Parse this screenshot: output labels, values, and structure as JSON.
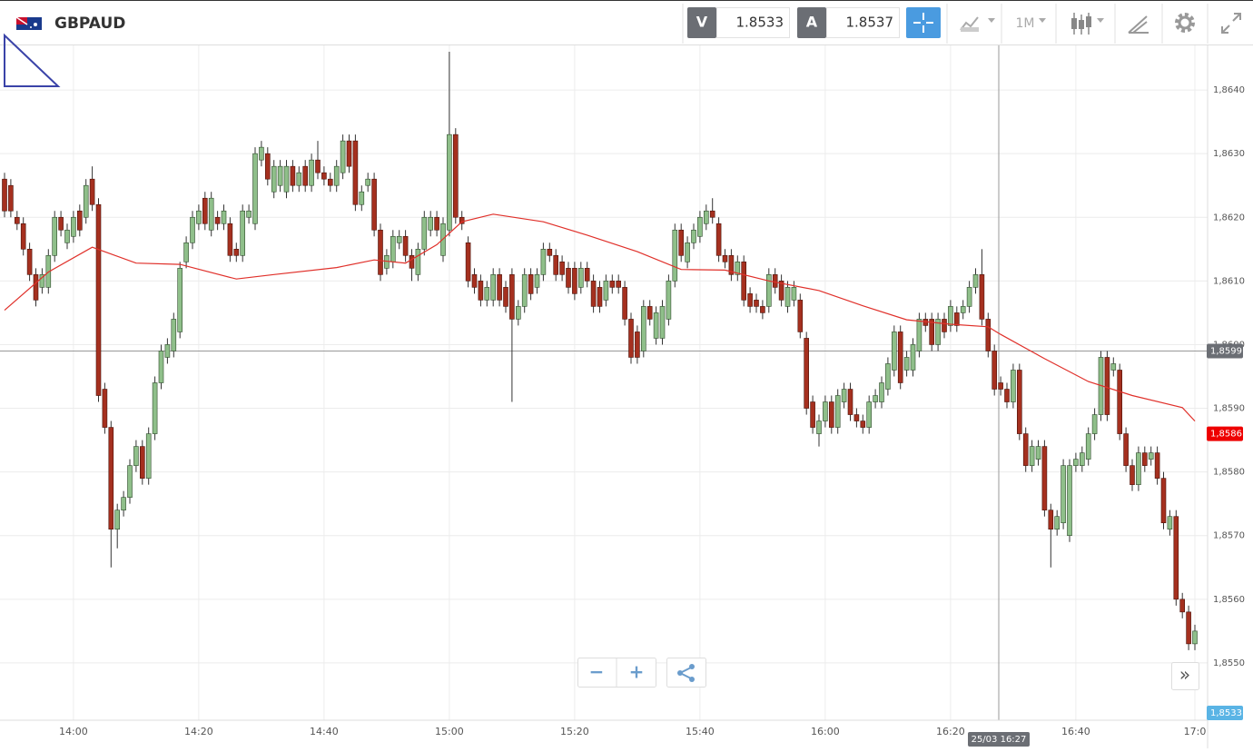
{
  "toolbar": {
    "symbol": "GBPAUD",
    "sell_label": "V",
    "sell_price": 1.8533,
    "buy_label": "A",
    "buy_price": 1.8537,
    "timeframe": "1M"
  },
  "zoom": {
    "minus": "−",
    "plus": "+",
    "more": "»"
  },
  "chart_data": {
    "type": "candlestick",
    "up_color": "#8fbf8a",
    "down_color": "#a5301f",
    "grid": true,
    "ylim": [
      1.8541,
      1.8647
    ],
    "yticks": [
      {
        "value": 1.855,
        "label": "1,8550"
      },
      {
        "value": 1.856,
        "label": "1,8560"
      },
      {
        "value": 1.857,
        "label": "1,8570"
      },
      {
        "value": 1.858,
        "label": "1,8580"
      },
      {
        "value": 1.859,
        "label": "1,8590"
      },
      {
        "value": 1.86,
        "label": "1,8600"
      },
      {
        "value": 1.861,
        "label": "1,8610"
      },
      {
        "value": 1.862,
        "label": "1,8620"
      },
      {
        "value": 1.863,
        "label": "1,8630"
      },
      {
        "value": 1.864,
        "label": "1,8640"
      }
    ],
    "categories": [
      null,
      null,
      null,
      null,
      null,
      null,
      null,
      null,
      null,
      null,
      null,
      "14:00",
      null,
      null,
      null,
      null,
      null,
      null,
      null,
      null,
      null,
      null,
      null,
      null,
      null,
      null,
      null,
      null,
      null,
      null,
      null,
      "14:20",
      null,
      null,
      null,
      null,
      null,
      null,
      null,
      null,
      null,
      null,
      null,
      null,
      null,
      null,
      null,
      null,
      null,
      null,
      null,
      "14:40",
      null,
      null,
      null,
      null,
      null,
      null,
      null,
      null,
      null,
      null,
      null,
      null,
      null,
      null,
      null,
      null,
      null,
      null,
      null,
      "15:00",
      null,
      null,
      null,
      null,
      null,
      null,
      null,
      null,
      null,
      null,
      null,
      null,
      null,
      null,
      null,
      null,
      null,
      null,
      null,
      "15:20",
      null,
      null,
      null,
      null,
      null,
      null,
      null,
      null,
      null,
      null,
      null,
      null,
      null,
      null,
      null,
      null,
      null,
      null,
      null,
      "15:40",
      null,
      null,
      null,
      null,
      null,
      null,
      null,
      null,
      null,
      null,
      null,
      null,
      null,
      null,
      null,
      null,
      null,
      null,
      null,
      "16:00",
      null,
      null,
      null,
      null,
      null,
      null,
      null,
      null,
      null,
      null,
      null,
      null,
      null,
      null,
      null,
      null,
      null,
      null,
      null,
      "16:20",
      null,
      null,
      null,
      null,
      null,
      null,
      null,
      null,
      null,
      null,
      null,
      null,
      null,
      null,
      null,
      null,
      null,
      null,
      null,
      "16:40",
      null,
      null,
      null,
      null,
      null,
      null,
      null,
      null,
      null,
      null,
      null,
      null,
      null,
      null,
      null,
      null,
      null,
      null,
      "17:0"
    ],
    "open": [
      1.8626,
      1.8625,
      1.862,
      1.8619,
      1.8615,
      1.8611,
      1.8609,
      1.8609,
      1.8614,
      1.862,
      1.8616,
      1.8617,
      1.8621,
      1.862,
      1.8626,
      1.8622,
      1.8593,
      1.8587,
      1.8571,
      1.8574,
      1.8576,
      1.8581,
      1.8584,
      1.8579,
      1.8586,
      1.8594,
      1.8598,
      1.8599,
      1.8602,
      1.8613,
      1.8616,
      1.8619,
      1.8623,
      1.8618,
      1.862,
      1.8619,
      1.8619,
      1.8615,
      1.8614,
      1.862,
      1.8619,
      1.8629,
      1.863,
      1.8624,
      1.8625,
      1.8624,
      1.8628,
      1.8625,
      1.8628,
      1.8625,
      1.8629,
      1.8627,
      1.8626,
      1.8625,
      1.8627,
      1.8632,
      1.8632,
      1.8622,
      1.8625,
      1.8626,
      1.8618,
      1.8612,
      1.8613,
      1.8616,
      1.8617,
      1.8614,
      1.8611,
      1.8615,
      1.8618,
      1.862,
      1.8614,
      1.8618,
      1.8633,
      1.862,
      1.8616,
      1.8611,
      1.861,
      1.8607,
      1.8607,
      1.8611,
      1.8609,
      1.8611,
      1.8604,
      1.8606,
      1.8611,
      1.8609,
      1.8611,
      1.8615,
      1.8614,
      1.8613,
      1.8612,
      1.8612,
      1.8609,
      1.8612,
      1.861,
      1.8609,
      1.8607,
      1.861,
      1.861,
      1.8609,
      1.8604,
      1.8602,
      1.8599,
      1.8606,
      1.8601,
      1.8601,
      1.8604,
      1.861,
      1.8618,
      1.8613,
      1.8616,
      1.8617,
      1.8619,
      1.8621,
      1.8619,
      1.8614,
      1.8614,
      1.8611,
      1.8613,
      1.8608,
      1.8607,
      1.8606,
      1.8606,
      1.8611,
      1.861,
      1.8606,
      1.8607,
      1.8607,
      1.8601,
      1.8591,
      1.8586,
      1.8588,
      1.8591,
      1.8587,
      1.8591,
      1.8593,
      1.8589,
      1.8588,
      1.8587,
      1.8591,
      1.8591,
      1.8593,
      1.8596,
      1.8602,
      1.8596,
      1.8596,
      1.8599,
      1.8604,
      1.8604,
      1.86,
      1.8604,
      1.8603,
      1.8605,
      1.8605,
      1.8606,
      1.8609,
      1.8611,
      1.8604,
      1.8599,
      1.8594,
      1.8593,
      1.8591,
      1.8596,
      1.8586,
      1.8581,
      1.8582,
      1.8584,
      1.8574,
      1.8571,
      1.8572,
      1.857,
      1.8581,
      1.8581,
      1.8582,
      1.8586,
      1.8589,
      1.8598,
      1.8596,
      1.8596,
      1.8586,
      1.8581,
      1.8578,
      1.8583,
      1.8582,
      1.8583,
      1.8579,
      1.8571,
      1.8573,
      1.856,
      1.8558,
      1.8553
    ],
    "high": [
      1.8627,
      1.8626,
      1.8621,
      1.862,
      1.8616,
      1.8612,
      1.8612,
      1.8615,
      1.8621,
      1.8621,
      1.8619,
      1.8621,
      1.8622,
      1.8626,
      1.8628,
      1.8623,
      1.8594,
      1.8588,
      1.8575,
      1.8577,
      1.8582,
      1.8585,
      1.8585,
      1.8587,
      1.8595,
      1.86,
      1.8601,
      1.8605,
      1.8613,
      1.8617,
      1.8621,
      1.8622,
      1.8624,
      1.8624,
      1.8621,
      1.8622,
      1.862,
      1.8616,
      1.8622,
      1.8622,
      1.8631,
      1.8632,
      1.8631,
      1.8629,
      1.8629,
      1.8629,
      1.8629,
      1.8628,
      1.8629,
      1.863,
      1.8632,
      1.8628,
      1.8627,
      1.8629,
      1.8633,
      1.8633,
      1.8633,
      1.8625,
      1.8627,
      1.8627,
      1.8619,
      1.8615,
      1.8618,
      1.8618,
      1.8618,
      1.8615,
      1.8616,
      1.8621,
      1.8621,
      1.8621,
      1.862,
      1.8646,
      1.8634,
      1.8621,
      1.8617,
      1.8612,
      1.8611,
      1.861,
      1.8612,
      1.8612,
      1.861,
      1.8612,
      1.8607,
      1.8612,
      1.8612,
      1.8612,
      1.8616,
      1.8616,
      1.8615,
      1.8614,
      1.8613,
      1.8613,
      1.8613,
      1.8613,
      1.8611,
      1.861,
      1.8611,
      1.8611,
      1.8611,
      1.861,
      1.8605,
      1.8603,
      1.8607,
      1.8607,
      1.8606,
      1.8607,
      1.8611,
      1.8619,
      1.8619,
      1.8617,
      1.8619,
      1.8621,
      1.8622,
      1.8623,
      1.862,
      1.8615,
      1.8615,
      1.8614,
      1.8614,
      1.8609,
      1.8608,
      1.8607,
      1.8612,
      1.8612,
      1.8611,
      1.861,
      1.861,
      1.8608,
      1.8602,
      1.8592,
      1.8589,
      1.8592,
      1.8592,
      1.8593,
      1.8594,
      1.8594,
      1.859,
      1.8589,
      1.8592,
      1.8593,
      1.8595,
      1.8598,
      1.8603,
      1.8603,
      1.8599,
      1.8601,
      1.8605,
      1.8605,
      1.8605,
      1.8605,
      1.8605,
      1.8607,
      1.8606,
      1.8607,
      1.861,
      1.8612,
      1.8615,
      1.8605,
      1.86,
      1.8595,
      1.8594,
      1.8597,
      1.8597,
      1.8587,
      1.8585,
      1.8585,
      1.8585,
      1.8575,
      1.8574,
      1.8582,
      1.8582,
      1.8583,
      1.8584,
      1.8587,
      1.859,
      1.8599,
      1.8599,
      1.8598,
      1.8597,
      1.8587,
      1.8582,
      1.8584,
      1.8584,
      1.8584,
      1.8584,
      1.858,
      1.8574,
      1.8574,
      1.8561,
      1.8559,
      1.8556
    ],
    "low": [
      1.862,
      1.862,
      1.8618,
      1.8614,
      1.861,
      1.8606,
      1.8608,
      1.8608,
      1.8613,
      1.8617,
      1.8615,
      1.8616,
      1.8617,
      1.8619,
      1.8621,
      1.8591,
      1.8586,
      1.8565,
      1.8568,
      1.8573,
      1.8575,
      1.858,
      1.8578,
      1.8578,
      1.8585,
      1.8593,
      1.8597,
      1.8598,
      1.8601,
      1.8612,
      1.8615,
      1.8618,
      1.8618,
      1.8617,
      1.8618,
      1.8618,
      1.8613,
      1.8613,
      1.8613,
      1.8619,
      1.8618,
      1.8628,
      1.8625,
      1.8623,
      1.8624,
      1.8623,
      1.8624,
      1.8624,
      1.8624,
      1.8624,
      1.8626,
      1.8625,
      1.8624,
      1.8624,
      1.8626,
      1.8627,
      1.8621,
      1.8621,
      1.8624,
      1.8617,
      1.861,
      1.8611,
      1.8612,
      1.8615,
      1.8613,
      1.861,
      1.861,
      1.8614,
      1.8617,
      1.8617,
      1.8613,
      1.8617,
      1.8619,
      1.8618,
      1.8609,
      1.8608,
      1.8606,
      1.8606,
      1.8606,
      1.8606,
      1.8605,
      1.8591,
      1.8603,
      1.8605,
      1.8607,
      1.8608,
      1.861,
      1.8613,
      1.861,
      1.861,
      1.8608,
      1.8607,
      1.8608,
      1.8609,
      1.8605,
      1.8605,
      1.8606,
      1.8608,
      1.8608,
      1.8603,
      1.8597,
      1.8597,
      1.8598,
      1.8603,
      1.86,
      1.86,
      1.8603,
      1.8609,
      1.8613,
      1.8612,
      1.8615,
      1.8616,
      1.8618,
      1.8619,
      1.8613,
      1.8612,
      1.861,
      1.861,
      1.8606,
      1.8605,
      1.8605,
      1.8604,
      1.8605,
      1.8608,
      1.8606,
      1.8605,
      1.8606,
      1.8601,
      1.8589,
      1.8586,
      1.8584,
      1.8587,
      1.8586,
      1.8586,
      1.859,
      1.8588,
      1.8587,
      1.8586,
      1.8586,
      1.859,
      1.859,
      1.8592,
      1.8595,
      1.8593,
      1.8595,
      1.8595,
      1.8598,
      1.8602,
      1.8599,
      1.8599,
      1.8601,
      1.8602,
      1.8602,
      1.8604,
      1.8605,
      1.8608,
      1.8603,
      1.8598,
      1.8592,
      1.8592,
      1.859,
      1.859,
      1.8585,
      1.858,
      1.858,
      1.8581,
      1.8573,
      1.8565,
      1.857,
      1.8571,
      1.8569,
      1.858,
      1.858,
      1.8581,
      1.8585,
      1.8588,
      1.8588,
      1.8595,
      1.8585,
      1.858,
      1.8577,
      1.8577,
      1.858,
      1.8581,
      1.8578,
      1.8571,
      1.857,
      1.8559,
      1.8557,
      1.8552,
      1.8552
    ],
    "close": [
      1.8621,
      1.8621,
      1.8619,
      1.8615,
      1.8611,
      1.8607,
      1.8611,
      1.8614,
      1.862,
      1.8618,
      1.8618,
      1.862,
      1.8618,
      1.8625,
      1.8622,
      1.8592,
      1.8587,
      1.8571,
      1.8574,
      1.8576,
      1.8581,
      1.8584,
      1.8579,
      1.8586,
      1.8594,
      1.8599,
      1.86,
      1.8604,
      1.8612,
      1.8616,
      1.862,
      1.8621,
      1.8619,
      1.8623,
      1.8619,
      1.8621,
      1.8614,
      1.8614,
      1.8621,
      1.8621,
      1.863,
      1.8631,
      1.8626,
      1.8628,
      1.8628,
      1.8628,
      1.8625,
      1.8627,
      1.8625,
      1.8629,
      1.8627,
      1.8626,
      1.8625,
      1.8628,
      1.8632,
      1.8628,
      1.8622,
      1.8624,
      1.8626,
      1.8618,
      1.8611,
      1.8614,
      1.8617,
      1.8617,
      1.8614,
      1.8612,
      1.8615,
      1.862,
      1.862,
      1.8618,
      1.8619,
      1.8633,
      1.862,
      1.8619,
      1.861,
      1.8609,
      1.8607,
      1.8609,
      1.8611,
      1.8607,
      1.8606,
      1.8604,
      1.8606,
      1.8611,
      1.8608,
      1.8611,
      1.8615,
      1.8614,
      1.8611,
      1.8611,
      1.8609,
      1.8608,
      1.8612,
      1.861,
      1.8606,
      1.8606,
      1.861,
      1.8609,
      1.8609,
      1.8604,
      1.8598,
      1.8598,
      1.8606,
      1.8604,
      1.8605,
      1.8606,
      1.861,
      1.8618,
      1.8614,
      1.8616,
      1.8618,
      1.862,
      1.8621,
      1.862,
      1.8614,
      1.8613,
      1.8611,
      1.8613,
      1.8607,
      1.8606,
      1.8606,
      1.8605,
      1.8611,
      1.8609,
      1.8607,
      1.8609,
      1.8609,
      1.8602,
      1.859,
      1.8587,
      1.8588,
      1.8591,
      1.8587,
      1.8592,
      1.8593,
      1.8589,
      1.8588,
      1.8587,
      1.8591,
      1.8592,
      1.8594,
      1.8597,
      1.8602,
      1.8594,
      1.8598,
      1.86,
      1.8604,
      1.8603,
      1.86,
      1.8604,
      1.8602,
      1.8606,
      1.8603,
      1.8606,
      1.8609,
      1.8611,
      1.8604,
      1.8599,
      1.8593,
      1.8593,
      1.8591,
      1.8596,
      1.8586,
      1.8581,
      1.8584,
      1.8584,
      1.8574,
      1.8571,
      1.8573,
      1.8581,
      1.8581,
      1.8582,
      1.8583,
      1.8586,
      1.8589,
      1.8598,
      1.8589,
      1.8597,
      1.8586,
      1.8581,
      1.8578,
      1.8583,
      1.8581,
      1.8583,
      1.8579,
      1.8572,
      1.8573,
      1.856,
      1.8558,
      1.8553,
      1.8555
    ],
    "ma": {
      "color": "#e0302a",
      "x": [
        0,
        7,
        14,
        21,
        28,
        37,
        43,
        53,
        59,
        64,
        69,
        73,
        78,
        86,
        93,
        101,
        108,
        115,
        122,
        130,
        137,
        144,
        151,
        157,
        159,
        166,
        173,
        180,
        188,
        190
      ],
      "values": [
        1.86054,
        1.86114,
        1.86153,
        1.86128,
        1.86126,
        1.86103,
        1.8611,
        1.86121,
        1.86133,
        1.86128,
        1.86157,
        1.86193,
        1.86205,
        1.86193,
        1.86172,
        1.86146,
        1.86118,
        1.86117,
        1.861,
        1.86085,
        1.86061,
        1.86039,
        1.86032,
        1.86028,
        1.86016,
        1.85978,
        1.85942,
        1.8592,
        1.85901,
        1.8588
      ]
    },
    "crosshair": {
      "value": 1.8599,
      "label": "1,8599",
      "time": "25/03 16:27"
    },
    "price_labels": {
      "ma_last": {
        "value": 1.8586,
        "label": "1,8586",
        "color": "#ee0000"
      },
      "last": {
        "value": 1.8533,
        "label": "1,8533",
        "color": "#5ab4e5"
      }
    }
  }
}
